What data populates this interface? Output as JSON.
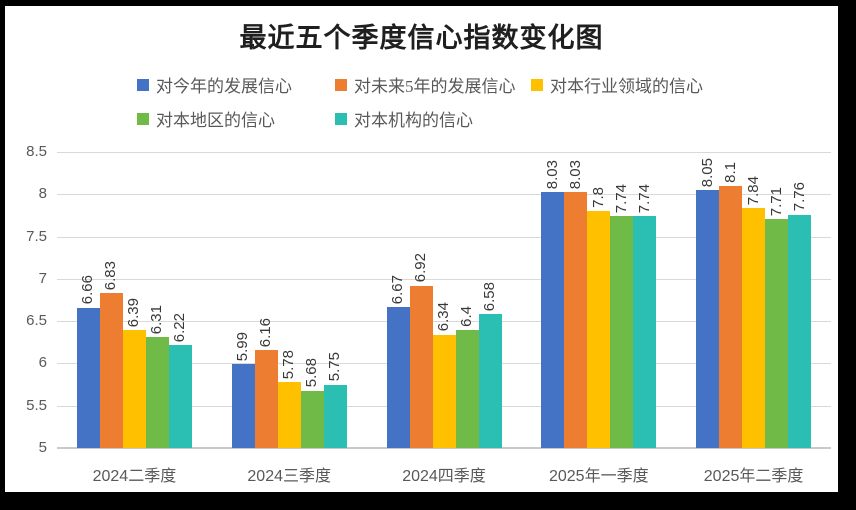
{
  "title": "最近五个季度信心指数变化图",
  "colors": {
    "background": "#FFFFFF",
    "frame": "#000000",
    "gridline": "#D9D9D9",
    "axis_line": "#C9C9C9",
    "axis_text": "#595959",
    "data_label_text": "#383838",
    "title_text": "#1F1F1F"
  },
  "chart_data": {
    "type": "bar",
    "title": "最近五个季度信心指数变化图",
    "categories": [
      "2024二季度",
      "2024三季度",
      "2024四季度",
      "2025年一季度",
      "2025年二季度"
    ],
    "series": [
      {
        "name": "对今年的发展信心",
        "color": "#4472C4",
        "values": [
          6.66,
          5.99,
          6.67,
          8.03,
          8.05
        ]
      },
      {
        "name": "对未来5年的发展信心",
        "color": "#ED7D31",
        "values": [
          6.83,
          6.16,
          6.92,
          8.03,
          8.1
        ]
      },
      {
        "name": "对本行业领域的信心",
        "color": "#FFC000",
        "values": [
          6.39,
          5.78,
          6.34,
          7.8,
          7.84
        ]
      },
      {
        "name": "对本地区的信心",
        "color": "#70BB47",
        "values": [
          6.31,
          5.68,
          6.4,
          7.74,
          7.71
        ]
      },
      {
        "name": "对本机构的信心",
        "color": "#2BBFB4",
        "values": [
          6.22,
          5.75,
          6.58,
          7.74,
          7.76
        ]
      }
    ],
    "ylim": [
      5,
      8.5
    ],
    "yticks": [
      "8.5",
      "8",
      "7.5",
      "7",
      "6.5",
      "6",
      "5.5",
      "5"
    ],
    "grid": true,
    "legend_position": "top",
    "data_labels": true,
    "data_label_rotation_deg": -90,
    "xlabel": "",
    "ylabel": ""
  }
}
